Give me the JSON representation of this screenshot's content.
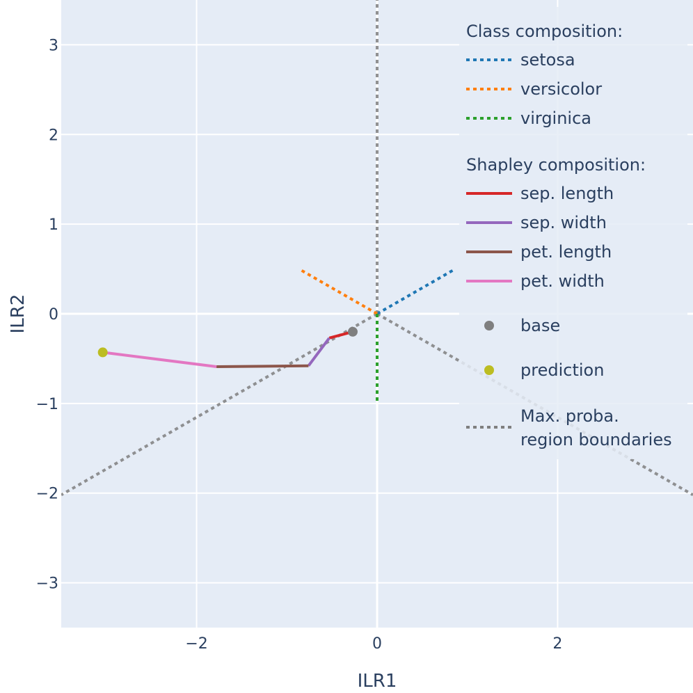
{
  "chart_data": {
    "type": "line",
    "xlabel": "ILR1",
    "ylabel": "ILR2",
    "xlim": [
      -3.5,
      3.5
    ],
    "ylim": [
      -3.5,
      3.5
    ],
    "x_ticks": [
      -2,
      0,
      2
    ],
    "y_ticks": [
      -3,
      -2,
      -1,
      0,
      1,
      2,
      3
    ],
    "x_tick_labels": [
      "−2",
      "0",
      "2"
    ],
    "y_tick_labels": [
      "−3",
      "−2",
      "−1",
      "0",
      "1",
      "2",
      "3"
    ],
    "grid": true,
    "legend_position": "top-right",
    "colors": {
      "plot_bg": "#e5ecf6",
      "grid": "#ffffff",
      "text": "#2a3f5f"
    },
    "class_composition": {
      "title": "Class composition:",
      "series": [
        {
          "name": "setosa",
          "color": "#1f77b4",
          "x": [
            0,
            0.866
          ],
          "y": [
            0,
            0.5
          ]
        },
        {
          "name": "versicolor",
          "color": "#ff7f0e",
          "x": [
            0,
            -0.866
          ],
          "y": [
            0,
            0.5
          ]
        },
        {
          "name": "virginica",
          "color": "#2ca02c",
          "x": [
            0,
            0
          ],
          "y": [
            0,
            -1
          ]
        }
      ]
    },
    "shapley_composition": {
      "title": "Shapley composition:",
      "series": [
        {
          "name": "sep. length",
          "color": "#d62728",
          "x": [
            -0.27,
            -0.53
          ],
          "y": [
            -0.2,
            -0.27
          ]
        },
        {
          "name": "sep. width",
          "color": "#9467bd",
          "x": [
            -0.53,
            -0.76
          ],
          "y": [
            -0.27,
            -0.58
          ]
        },
        {
          "name": "pet. length",
          "color": "#8c564b",
          "x": [
            -0.76,
            -1.78
          ],
          "y": [
            -0.58,
            -0.59
          ]
        },
        {
          "name": "pet. width",
          "color": "#e377c2",
          "x": [
            -1.78,
            -3.04
          ],
          "y": [
            -0.59,
            -0.43
          ]
        }
      ]
    },
    "points": [
      {
        "name": "base",
        "color": "#7f7f7f",
        "x": -0.27,
        "y": -0.2
      },
      {
        "name": "prediction",
        "color": "#bcbd22",
        "x": -3.04,
        "y": -0.43
      }
    ],
    "boundaries": {
      "name_lines": [
        "Max. proba.",
        "region boundaries"
      ],
      "color": "#7f7f7f",
      "lines": [
        {
          "x": [
            0,
            0
          ],
          "y": [
            0,
            3.5
          ]
        },
        {
          "x": [
            0,
            -3.5
          ],
          "y": [
            0,
            -2.02
          ]
        },
        {
          "x": [
            0,
            3.5
          ],
          "y": [
            0,
            -2.02
          ]
        }
      ]
    }
  }
}
